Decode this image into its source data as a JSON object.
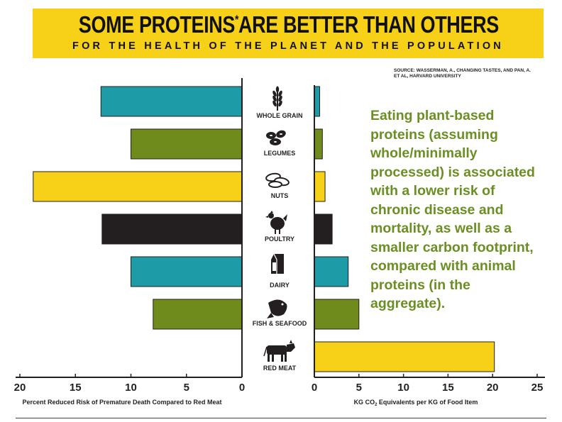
{
  "header": {
    "title": "SOME PROTEINS",
    "title_asterisk": "*",
    "title_rest": "ARE BETTER THAN OTHERS",
    "subtitle": "FOR THE HEALTH OF THE PLANET AND THE POPULATION"
  },
  "source": "SOURCE: WASSERMAN, A., CHANGING TASTES, AND PAN, A. ET AL, HARVARD UNIVERSITY",
  "statement": "Eating plant-based proteins (assuming whole/minimally processed) is associated with a lower risk of chronic disease and mortality, as well as a smaller carbon footprint, compared with animal proteins (in the aggregate).",
  "colors": {
    "banner": "#f7d117",
    "teal": "#1d9ba7",
    "green": "#6f8b1c",
    "yellow": "#f7d117",
    "black": "#231f20",
    "statement_text": "#6b8f23"
  },
  "chart_data": [
    {
      "type": "bar",
      "orientation": "horizontal",
      "direction": "right-to-left",
      "categories": [
        "WHOLE GRAIN",
        "LEGUMES",
        "NUTS",
        "POULTRY",
        "DAIRY",
        "FISH & SEAFOOD",
        "RED MEAT"
      ],
      "values": [
        12.7,
        10,
        18.8,
        12.6,
        10,
        8,
        0
      ],
      "colors": [
        "#1d9ba7",
        "#6f8b1c",
        "#f7d117",
        "#231f20",
        "#1d9ba7",
        "#6f8b1c",
        "#f7d117"
      ],
      "xlabel": "Percent Reduced Risk of Premature Death Compared to Red Meat",
      "xlim": [
        0,
        20
      ],
      "xticks": [
        "20",
        "15",
        "10",
        "5",
        "0"
      ],
      "grid": false
    },
    {
      "type": "bar",
      "orientation": "horizontal",
      "categories": [
        "WHOLE GRAIN",
        "LEGUMES",
        "NUTS",
        "POULTRY",
        "DAIRY",
        "FISH & SEAFOOD",
        "RED MEAT"
      ],
      "values": [
        0.6,
        0.9,
        1.2,
        2,
        3.8,
        5,
        20.2
      ],
      "colors": [
        "#1d9ba7",
        "#6f8b1c",
        "#f7d117",
        "#231f20",
        "#1d9ba7",
        "#6f8b1c",
        "#f7d117"
      ],
      "xlabel_main": "KG CO",
      "xlabel_sub": "2",
      "xlabel_rest": " Equivalents per KG of Food Item",
      "xlim": [
        0,
        25
      ],
      "xticks": [
        "0",
        "5",
        "10",
        "15",
        "20",
        "25"
      ],
      "grid": false
    }
  ],
  "icons": [
    "wheat-icon",
    "beans-icon",
    "nuts-icon",
    "chicken-icon",
    "milk-carton-icon",
    "fish-icon",
    "cow-icon"
  ]
}
